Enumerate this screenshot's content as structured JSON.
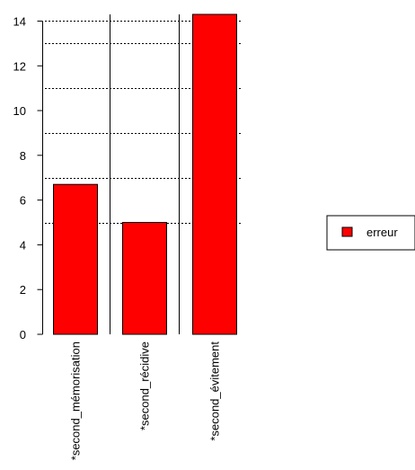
{
  "chart_data": {
    "type": "bar",
    "categories": [
      "*second_mémorisation",
      "*second_récidive",
      "*second_évitement"
    ],
    "series": [
      {
        "name": "erreur",
        "values": [
          6.7,
          5.0,
          14.3
        ]
      }
    ],
    "title": "",
    "xlabel": "",
    "ylabel": "",
    "ylim": [
      0,
      14.3
    ],
    "yticks": [
      0,
      2,
      4,
      6,
      8,
      10,
      12,
      14
    ],
    "gridlines": [
      5,
      7,
      9,
      11,
      13,
      14
    ],
    "grid": "horizontal-dashed",
    "legend": "right",
    "colors": {
      "bar": "#ff0000",
      "bar_stroke": "#000000",
      "grid": "#000000"
    }
  }
}
